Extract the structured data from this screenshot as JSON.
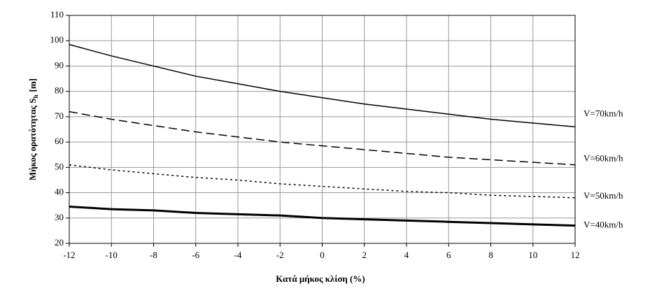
{
  "chart_data": {
    "type": "line",
    "y_label": "Μήκος ορατότητας S",
    "y_label_sub": "h",
    "y_label_unit": "[m]",
    "x_label": "Κατά μήκος κλίση (%)",
    "x": [
      -12,
      -10,
      -8,
      -6,
      -4,
      -2,
      0,
      2,
      4,
      6,
      8,
      10,
      12
    ],
    "series": [
      {
        "name": "V=70km/h",
        "color": "#000000",
        "width": 1.5,
        "dash": "none",
        "values": [
          98.5,
          94,
          90,
          86,
          83,
          80,
          77.5,
          75,
          73,
          71,
          69,
          67.5,
          66
        ]
      },
      {
        "name": "V=60km/h",
        "color": "#000000",
        "width": 1.5,
        "dash": "12 6",
        "values": [
          72,
          69,
          66.5,
          64,
          62,
          60,
          58.5,
          57,
          55.5,
          54,
          53,
          52,
          51
        ]
      },
      {
        "name": "V=50km/h",
        "color": "#000000",
        "width": 1.5,
        "dash": "3 4",
        "values": [
          51,
          49,
          47.5,
          46,
          45,
          43.5,
          42.5,
          41.5,
          40.5,
          40,
          39,
          38.5,
          38
        ]
      },
      {
        "name": "V=40km/h",
        "color": "#000000",
        "width": 3,
        "dash": "none",
        "values": [
          34.5,
          33.5,
          33,
          32,
          31.5,
          31,
          30,
          29.5,
          29,
          28.5,
          28,
          27.5,
          27
        ]
      }
    ],
    "xlim": [
      -12,
      12
    ],
    "xticks": [
      -12,
      -10,
      -8,
      -6,
      -4,
      -2,
      0,
      2,
      4,
      6,
      8,
      10,
      12
    ],
    "ylim": [
      20,
      110
    ],
    "yticks": [
      20,
      30,
      40,
      50,
      60,
      70,
      80,
      90,
      100,
      110
    ],
    "grid": true
  }
}
